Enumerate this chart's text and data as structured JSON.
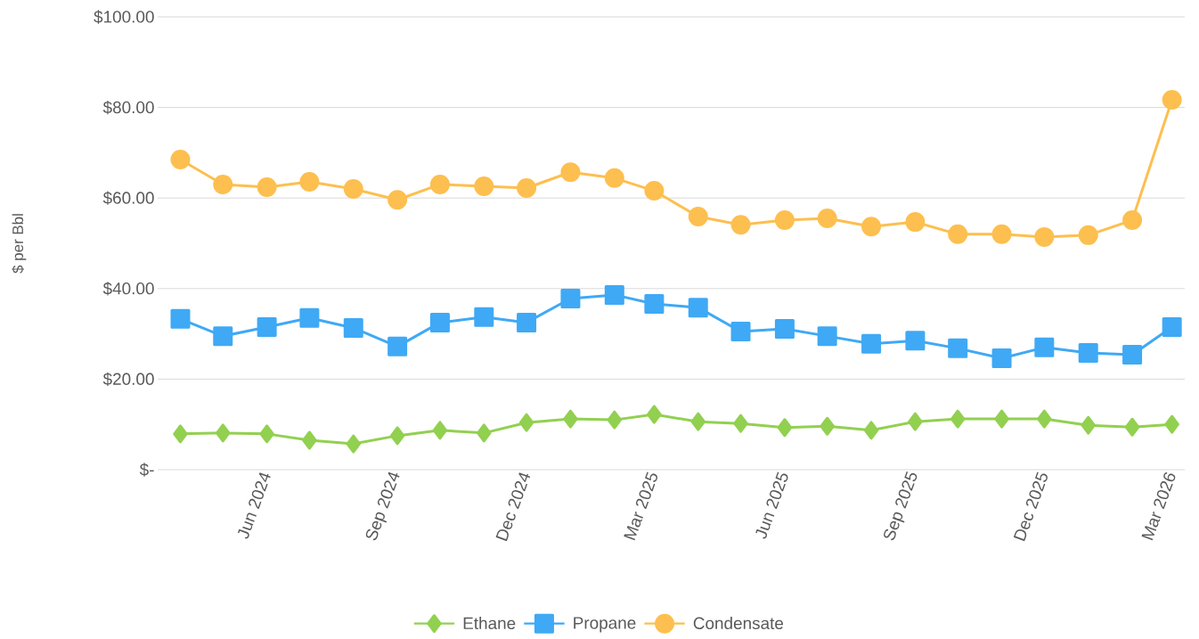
{
  "chart_data": {
    "type": "line",
    "ylabel": "$ per Bbl",
    "x": [
      "2024-04",
      "2024-05",
      "2024-06",
      "2024-07",
      "2024-08",
      "2024-09",
      "2024-10",
      "2024-11",
      "2024-12",
      "2025-01",
      "2025-02",
      "2025-03",
      "2025-04",
      "2025-05",
      "2025-06",
      "2025-07",
      "2025-08",
      "2025-09",
      "2025-10",
      "2025-11",
      "2025-12",
      "2026-01",
      "2026-02",
      "2026-03"
    ],
    "series": [
      {
        "name": "Ethane",
        "color": "#92d050",
        "marker": "diamond",
        "values": [
          7.9,
          8.1,
          7.9,
          6.5,
          5.7,
          7.5,
          8.7,
          8.1,
          10.4,
          11.2,
          11.0,
          12.2,
          10.6,
          10.2,
          9.3,
          9.6,
          8.7,
          10.6,
          11.2,
          11.2,
          11.2,
          9.8,
          9.4,
          10.0
        ]
      },
      {
        "name": "Propane",
        "color": "#3fa9f5",
        "marker": "square",
        "values": [
          33.3,
          29.5,
          31.5,
          33.5,
          31.3,
          27.2,
          32.5,
          33.7,
          32.5,
          37.8,
          38.6,
          36.6,
          35.8,
          30.5,
          31.1,
          29.5,
          27.8,
          28.5,
          26.8,
          24.6,
          27.0,
          25.8,
          25.4,
          31.5
        ]
      },
      {
        "name": "Condensate",
        "color": "#fdbf4f",
        "marker": "circle",
        "values": [
          68.5,
          63.0,
          62.4,
          63.6,
          62.0,
          59.6,
          63.0,
          62.6,
          62.2,
          65.7,
          64.4,
          61.6,
          55.9,
          54.1,
          55.1,
          55.5,
          53.7,
          54.7,
          52.0,
          52.0,
          51.4,
          51.8,
          55.1,
          81.7
        ]
      }
    ],
    "xlim": [
      "2024-03-16",
      "2026-03-10"
    ],
    "xticks": [
      {
        "value": "2024-06",
        "label": "Jun 2024"
      },
      {
        "value": "2024-09",
        "label": "Sep 2024"
      },
      {
        "value": "2024-12",
        "label": "Dec 2024"
      },
      {
        "value": "2025-03",
        "label": "Mar 2025"
      },
      {
        "value": "2025-06",
        "label": "Jun 2025"
      },
      {
        "value": "2025-09",
        "label": "Sep 2025"
      },
      {
        "value": "2025-12",
        "label": "Dec 2025"
      },
      {
        "value": "2026-03",
        "label": "Mar 2026"
      }
    ],
    "ylim": [
      0,
      100
    ],
    "yticks": [
      {
        "value": 0,
        "label": "$-"
      },
      {
        "value": 20,
        "label": "$20.00"
      },
      {
        "value": 40,
        "label": "$40.00"
      },
      {
        "value": 60,
        "label": "$60.00"
      },
      {
        "value": 80,
        "label": "$80.00"
      },
      {
        "value": 100,
        "label": "$100.00"
      }
    ],
    "grid": "y",
    "legend": "bottom",
    "line_style": "solid"
  }
}
